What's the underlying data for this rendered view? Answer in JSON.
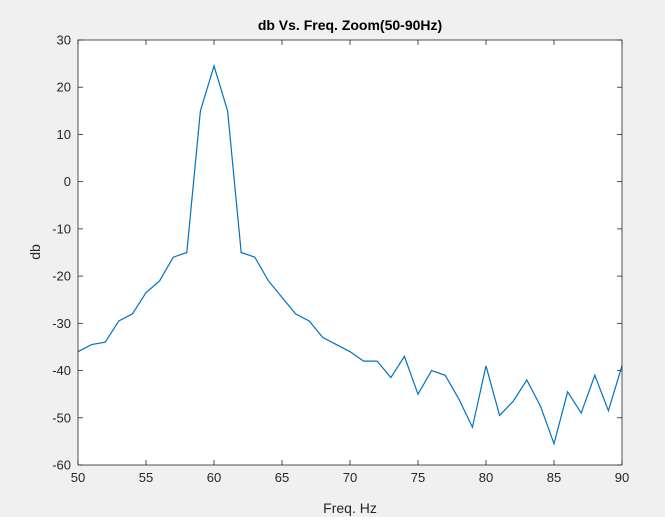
{
  "chart_data": {
    "type": "line",
    "title": "db Vs. Freq. Zoom(50-90Hz)",
    "xlabel": "Freq. Hz",
    "ylabel": "db",
    "xlim": [
      50,
      90
    ],
    "ylim": [
      -60,
      30
    ],
    "xticks": [
      50,
      55,
      60,
      65,
      70,
      75,
      80,
      85,
      90
    ],
    "yticks": [
      30,
      20,
      10,
      0,
      -10,
      -20,
      -30,
      -40,
      -50,
      -60
    ],
    "grid": false,
    "line_color": "#0072bd",
    "x": [
      50,
      51,
      52,
      53,
      54,
      55,
      56,
      57,
      58,
      59,
      60,
      61,
      62,
      63,
      64,
      65,
      66,
      67,
      68,
      69,
      70,
      71,
      72,
      73,
      74,
      75,
      76,
      77,
      78,
      79,
      80,
      81,
      82,
      83,
      84,
      85,
      86,
      87,
      88,
      89,
      90
    ],
    "y": [
      -36,
      -34.5,
      -34,
      -29.5,
      -28,
      -23.5,
      -21,
      -16,
      -15,
      15,
      24.5,
      15,
      -15,
      -16,
      -21,
      -24.5,
      -28,
      -29.5,
      -33,
      -34.5,
      -36,
      -38,
      -38,
      -41.5,
      -37,
      -45,
      -40,
      -41,
      -46,
      -52,
      -39,
      -49.5,
      -46.5,
      -42,
      -47.5,
      -55.5,
      -44.5,
      -49,
      -41,
      -48.5,
      -39
    ]
  }
}
